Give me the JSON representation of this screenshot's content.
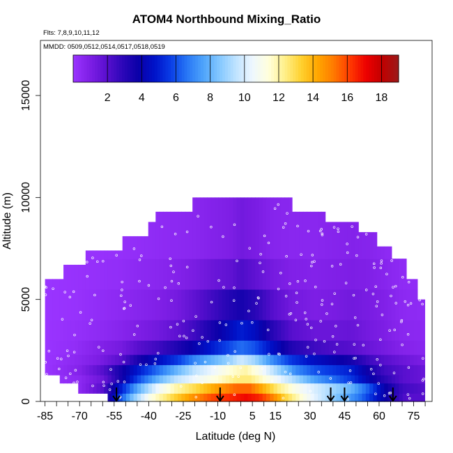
{
  "chart_data": {
    "type": "heatmap",
    "title": "ATOM4 Northbound Mixing_Ratio",
    "flights_label": "Flts: 7,8,9,10,11,12",
    "dates_label": "MMDD: 0509,0512,0514,0517,0518,0519",
    "xlabel": "Latitude (deg N)",
    "ylabel": "Altitude (m)",
    "xlim": [
      -87,
      83
    ],
    "ylim": [
      0,
      17700
    ],
    "x_ticks": [
      -85,
      -70,
      -55,
      -40,
      -25,
      -10,
      5,
      15,
      30,
      45,
      60,
      75
    ],
    "x_minor_ticks": [
      -80,
      -75,
      -65,
      -60,
      -50,
      -45,
      -35,
      -30,
      -20,
      -15,
      -5,
      0,
      10,
      20,
      25,
      35,
      40,
      50,
      55,
      65,
      70,
      80
    ],
    "y_ticks": [
      0,
      5000,
      10000,
      15000
    ],
    "colorbar": {
      "min": 0,
      "max": 19,
      "ticks": [
        2,
        4,
        6,
        8,
        10,
        12,
        14,
        16,
        18
      ],
      "colors": [
        "#9a34ff",
        "#7f1fe6",
        "#5b10d0",
        "#2e07b9",
        "#0a00a8",
        "#0012c9",
        "#0a3ee6",
        "#2877f5",
        "#4ea4fb",
        "#84c8ff",
        "#bfe3ff",
        "#eef7ff",
        "#ffffdc",
        "#fff08a",
        "#ffd130",
        "#ffa800",
        "#ff7a00",
        "#ff3a00",
        "#ee0000",
        "#c00000",
        "#9a1a1a"
      ]
    },
    "arrows_lat": [
      -54,
      -9,
      39,
      45,
      66
    ],
    "swath": {
      "lat_min": -85,
      "lat_max": 80,
      "ceilings": [
        {
          "from": -85,
          "to": -77,
          "alt": 6000
        },
        {
          "from": -77,
          "to": -67,
          "alt": 6700
        },
        {
          "from": -67,
          "to": -52,
          "alt": 7400
        },
        {
          "from": -52,
          "to": -41,
          "alt": 8100
        },
        {
          "from": -41,
          "to": -37,
          "alt": 8800
        },
        {
          "from": -37,
          "to": -21,
          "alt": 9300
        },
        {
          "from": -21,
          "to": 1,
          "alt": 10000
        },
        {
          "from": 1,
          "to": 22,
          "alt": 10000
        },
        {
          "from": 22,
          "to": 36,
          "alt": 9300
        },
        {
          "from": 36,
          "to": 51,
          "alt": 8800
        },
        {
          "from": 51,
          "to": 59,
          "alt": 8300
        },
        {
          "from": 59,
          "to": 66,
          "alt": 7600
        },
        {
          "from": 66,
          "to": 72,
          "alt": 7000
        },
        {
          "from": 72,
          "to": 76,
          "alt": 6000
        },
        {
          "from": 76,
          "to": 80,
          "alt": 5000
        }
      ],
      "floors": [
        {
          "from": -85,
          "to": -79,
          "alt": 1300
        },
        {
          "from": -79,
          "to": -70,
          "alt": 900
        },
        {
          "from": -70,
          "to": -58,
          "alt": 400
        },
        {
          "from": -58,
          "to": 66,
          "alt": 0
        },
        {
          "from": 66,
          "to": 80,
          "alt": 0
        }
      ]
    },
    "bands": [
      {
        "alt_from": 0,
        "alt_to": 400,
        "centers": [
          [
            -85,
            0.0
          ],
          [
            -70,
            0.5
          ],
          [
            -58,
            3
          ],
          [
            -48,
            8
          ],
          [
            -40,
            11
          ],
          [
            -30,
            13
          ],
          [
            -22,
            14.5
          ],
          [
            -12,
            16
          ],
          [
            -4,
            16.5
          ],
          [
            2,
            17
          ],
          [
            8,
            16.5
          ],
          [
            14,
            15
          ],
          [
            20,
            13
          ],
          [
            28,
            11
          ],
          [
            36,
            9.5
          ],
          [
            44,
            8
          ],
          [
            52,
            6.5
          ],
          [
            58,
            5
          ],
          [
            64,
            3.5
          ],
          [
            72,
            2
          ],
          [
            80,
            2
          ]
        ]
      },
      {
        "alt_from": 400,
        "alt_to": 900,
        "centers": [
          [
            -85,
            0.0
          ],
          [
            -70,
            0.5
          ],
          [
            -60,
            2
          ],
          [
            -52,
            5
          ],
          [
            -44,
            8
          ],
          [
            -36,
            10.5
          ],
          [
            -28,
            12
          ],
          [
            -20,
            13
          ],
          [
            -10,
            14.5
          ],
          [
            -2,
            15.5
          ],
          [
            4,
            15.5
          ],
          [
            10,
            14
          ],
          [
            16,
            12.5
          ],
          [
            24,
            11
          ],
          [
            32,
            10
          ],
          [
            40,
            9
          ],
          [
            48,
            8
          ],
          [
            56,
            6
          ],
          [
            62,
            4
          ],
          [
            70,
            2.5
          ],
          [
            80,
            2
          ]
        ]
      },
      {
        "alt_from": 900,
        "alt_to": 1300,
        "centers": [
          [
            -85,
            0.0
          ],
          [
            -70,
            0.5
          ],
          [
            -60,
            1.5
          ],
          [
            -52,
            3.5
          ],
          [
            -44,
            6
          ],
          [
            -36,
            8
          ],
          [
            -28,
            9.5
          ],
          [
            -20,
            10.5
          ],
          [
            -10,
            11.5
          ],
          [
            -2,
            12.5
          ],
          [
            4,
            12.5
          ],
          [
            10,
            11.5
          ],
          [
            16,
            10.5
          ],
          [
            24,
            9
          ],
          [
            32,
            7.5
          ],
          [
            40,
            6.5
          ],
          [
            48,
            5.5
          ],
          [
            56,
            4
          ],
          [
            62,
            3
          ],
          [
            70,
            2
          ],
          [
            80,
            1.5
          ]
        ]
      },
      {
        "alt_from": 1300,
        "alt_to": 1800,
        "centers": [
          [
            -85,
            0.0
          ],
          [
            -70,
            0.8
          ],
          [
            -60,
            2
          ],
          [
            -52,
            3.5
          ],
          [
            -44,
            5
          ],
          [
            -36,
            6.5
          ],
          [
            -28,
            8
          ],
          [
            -20,
            9.5
          ],
          [
            -12,
            10.5
          ],
          [
            -4,
            11.5
          ],
          [
            2,
            12
          ],
          [
            8,
            11
          ],
          [
            16,
            9
          ],
          [
            24,
            7
          ],
          [
            32,
            6
          ],
          [
            40,
            5.5
          ],
          [
            48,
            5
          ],
          [
            56,
            3.5
          ],
          [
            62,
            2.5
          ],
          [
            70,
            2
          ],
          [
            80,
            1.5
          ]
        ]
      },
      {
        "alt_from": 1800,
        "alt_to": 2300,
        "centers": [
          [
            -85,
            0.0
          ],
          [
            -72,
            0.5
          ],
          [
            -62,
            1
          ],
          [
            -52,
            2
          ],
          [
            -44,
            3.5
          ],
          [
            -36,
            4.5
          ],
          [
            -28,
            5.5
          ],
          [
            -20,
            7
          ],
          [
            -12,
            8
          ],
          [
            -4,
            9
          ],
          [
            0,
            9.8
          ],
          [
            6,
            9
          ],
          [
            14,
            7
          ],
          [
            22,
            5.5
          ],
          [
            32,
            4.5
          ],
          [
            40,
            4
          ],
          [
            48,
            3.5
          ],
          [
            56,
            2.5
          ],
          [
            62,
            2
          ],
          [
            70,
            1.5
          ],
          [
            80,
            1
          ]
        ]
      },
      {
        "alt_from": 2300,
        "alt_to": 3000,
        "centers": [
          [
            -85,
            0.0
          ],
          [
            -72,
            0.3
          ],
          [
            -62,
            0.8
          ],
          [
            -52,
            1.2
          ],
          [
            -44,
            2
          ],
          [
            -36,
            2.5
          ],
          [
            -28,
            3.2
          ],
          [
            -20,
            4
          ],
          [
            -12,
            5
          ],
          [
            -4,
            6
          ],
          [
            0,
            6.5
          ],
          [
            6,
            6
          ],
          [
            14,
            4.5
          ],
          [
            22,
            3.2
          ],
          [
            32,
            2.5
          ],
          [
            40,
            2.2
          ],
          [
            48,
            2
          ],
          [
            56,
            1.5
          ],
          [
            62,
            1.2
          ],
          [
            70,
            0.8
          ],
          [
            80,
            0.6
          ]
        ]
      },
      {
        "alt_from": 3000,
        "alt_to": 4000,
        "centers": [
          [
            -85,
            0.0
          ],
          [
            -72,
            0.2
          ],
          [
            -62,
            0.4
          ],
          [
            -52,
            0.7
          ],
          [
            -44,
            1
          ],
          [
            -36,
            1.3
          ],
          [
            -28,
            1.8
          ],
          [
            -20,
            2.5
          ],
          [
            -12,
            3.5
          ],
          [
            -4,
            4.5
          ],
          [
            0,
            5
          ],
          [
            6,
            4.5
          ],
          [
            14,
            3
          ],
          [
            22,
            2
          ],
          [
            32,
            1.5
          ],
          [
            40,
            1.5
          ],
          [
            48,
            1.6
          ],
          [
            56,
            1.2
          ],
          [
            62,
            1
          ],
          [
            70,
            0.6
          ],
          [
            80,
            0.5
          ]
        ]
      },
      {
        "alt_from": 4000,
        "alt_to": 5500,
        "centers": [
          [
            -85,
            0.0
          ],
          [
            -72,
            0.1
          ],
          [
            -62,
            0.3
          ],
          [
            -52,
            0.5
          ],
          [
            -44,
            0.7
          ],
          [
            -36,
            0.9
          ],
          [
            -28,
            1.2
          ],
          [
            -20,
            1.8
          ],
          [
            -12,
            2.5
          ],
          [
            -4,
            3.2
          ],
          [
            0,
            3.5
          ],
          [
            6,
            3
          ],
          [
            14,
            2
          ],
          [
            22,
            1.3
          ],
          [
            32,
            1
          ],
          [
            40,
            1.1
          ],
          [
            48,
            1.3
          ],
          [
            56,
            1.1
          ],
          [
            62,
            0.9
          ],
          [
            70,
            0.5
          ],
          [
            80,
            0.4
          ]
        ]
      },
      {
        "alt_from": 5500,
        "alt_to": 7000,
        "centers": [
          [
            -85,
            0.0
          ],
          [
            -72,
            0.1
          ],
          [
            -62,
            0.2
          ],
          [
            -52,
            0.3
          ],
          [
            -44,
            0.5
          ],
          [
            -36,
            0.6
          ],
          [
            -28,
            0.8
          ],
          [
            -20,
            1.1
          ],
          [
            -12,
            1.5
          ],
          [
            -4,
            1.8
          ],
          [
            0,
            2.2
          ],
          [
            6,
            1.8
          ],
          [
            14,
            1.2
          ],
          [
            22,
            0.9
          ],
          [
            32,
            0.8
          ],
          [
            40,
            0.9
          ],
          [
            48,
            1
          ],
          [
            56,
            0.9
          ],
          [
            62,
            0.7
          ],
          [
            70,
            0.4
          ],
          [
            80,
            0.3
          ]
        ]
      },
      {
        "alt_from": 7000,
        "alt_to": 10000,
        "centers": [
          [
            -85,
            0.0
          ],
          [
            -72,
            0.1
          ],
          [
            -62,
            0.1
          ],
          [
            -52,
            0.2
          ],
          [
            -44,
            0.3
          ],
          [
            -36,
            0.4
          ],
          [
            -28,
            0.5
          ],
          [
            -20,
            0.6
          ],
          [
            -12,
            0.8
          ],
          [
            -4,
            1
          ],
          [
            0,
            1.3
          ],
          [
            6,
            1.1
          ],
          [
            14,
            0.7
          ],
          [
            22,
            0.6
          ],
          [
            32,
            0.6
          ],
          [
            40,
            0.7
          ],
          [
            48,
            0.8
          ],
          [
            56,
            0.7
          ],
          [
            62,
            0.5
          ],
          [
            70,
            0.3
          ],
          [
            80,
            0.2
          ]
        ]
      }
    ]
  }
}
